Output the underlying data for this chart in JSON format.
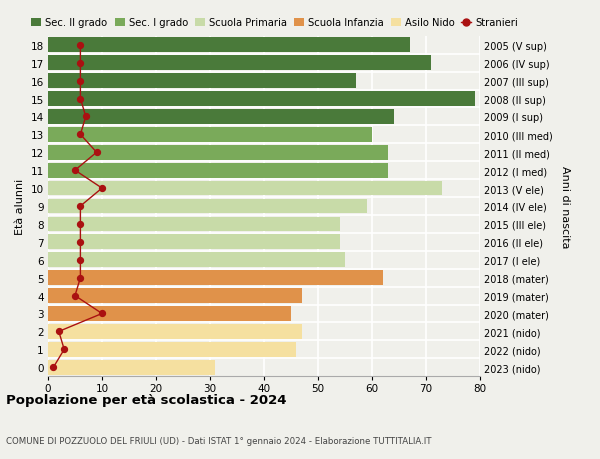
{
  "ages": [
    0,
    1,
    2,
    3,
    4,
    5,
    6,
    7,
    8,
    9,
    10,
    11,
    12,
    13,
    14,
    15,
    16,
    17,
    18
  ],
  "years": [
    "2023 (nido)",
    "2022 (nido)",
    "2021 (nido)",
    "2020 (mater)",
    "2019 (mater)",
    "2018 (mater)",
    "2017 (I ele)",
    "2016 (II ele)",
    "2015 (III ele)",
    "2014 (IV ele)",
    "2013 (V ele)",
    "2012 (I med)",
    "2011 (II med)",
    "2010 (III med)",
    "2009 (I sup)",
    "2008 (II sup)",
    "2007 (III sup)",
    "2006 (IV sup)",
    "2005 (V sup)"
  ],
  "bar_values": [
    31,
    46,
    47,
    45,
    47,
    62,
    55,
    54,
    54,
    59,
    73,
    63,
    63,
    60,
    64,
    79,
    57,
    71,
    67
  ],
  "stranieri": [
    1,
    3,
    2,
    10,
    5,
    6,
    6,
    6,
    6,
    6,
    10,
    5,
    9,
    6,
    7,
    6,
    6,
    6,
    6
  ],
  "bar_colors": [
    "#f5e0a0",
    "#f5e0a0",
    "#f5e0a0",
    "#e0924a",
    "#e0924a",
    "#e0924a",
    "#c8dba8",
    "#c8dba8",
    "#c8dba8",
    "#c8dba8",
    "#c8dba8",
    "#7aaa5a",
    "#7aaa5a",
    "#7aaa5a",
    "#4a7a3a",
    "#4a7a3a",
    "#4a7a3a",
    "#4a7a3a",
    "#4a7a3a"
  ],
  "legend_labels": [
    "Sec. II grado",
    "Sec. I grado",
    "Scuola Primaria",
    "Scuola Infanzia",
    "Asilo Nido",
    "Stranieri"
  ],
  "legend_colors": [
    "#4a7a3a",
    "#7aaa5a",
    "#c8dba8",
    "#e0924a",
    "#f5e0a0",
    "#cc2222"
  ],
  "ylabel_left": "Età alunni",
  "ylabel_right": "Anni di nascita",
  "title": "Popolazione per età scolastica - 2024",
  "subtitle": "COMUNE DI POZZUOLO DEL FRIULI (UD) - Dati ISTAT 1° gennaio 2024 - Elaborazione TUTTITALIA.IT",
  "xlim": [
    0,
    80
  ],
  "background_color": "#f0f0eb",
  "stranieri_color": "#aa1111",
  "grid_color": "#ffffff"
}
